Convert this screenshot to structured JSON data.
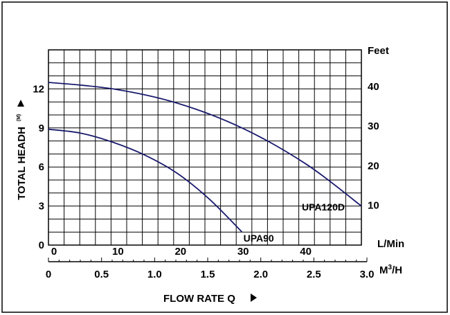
{
  "chart_data": {
    "type": "line",
    "xlabel": "FLOW RATE Q",
    "ylabel": "TOTAL HEADH",
    "ylabel_sub": "(M)",
    "y_right_unit": "Feet",
    "x_top_unit": "L/Min",
    "x_bottom_unit_base": "M",
    "x_bottom_unit_sup": "3",
    "x_bottom_unit_tail": "/H",
    "xlim_lmin": [
      0,
      48.5
    ],
    "ylim_m": [
      0,
      15
    ],
    "x_ticks_lmin": [
      "0",
      "10",
      "20",
      "30",
      "40"
    ],
    "x_ticks_m3h": [
      "0",
      "0.5",
      "1.0",
      "1.5",
      "2.0",
      "2.5",
      "3.0"
    ],
    "y_ticks_m": [
      "0",
      "3",
      "6",
      "9",
      "12"
    ],
    "y_ticks_feet": [
      "10",
      "20",
      "30",
      "40"
    ],
    "grid": true,
    "series": [
      {
        "name": "UPA90",
        "color": "#1a1a6e",
        "x_lmin": [
          0,
          5,
          10,
          15,
          20,
          25,
          30
        ],
        "y_m": [
          8.9,
          8.6,
          7.9,
          6.9,
          5.5,
          3.5,
          1.0
        ]
      },
      {
        "name": "UPA120D",
        "color": "#1a1a6e",
        "x_lmin": [
          0,
          10,
          20,
          30,
          40,
          48.5
        ],
        "y_m": [
          12.5,
          12.0,
          10.9,
          9.0,
          6.2,
          3.0
        ]
      }
    ]
  }
}
